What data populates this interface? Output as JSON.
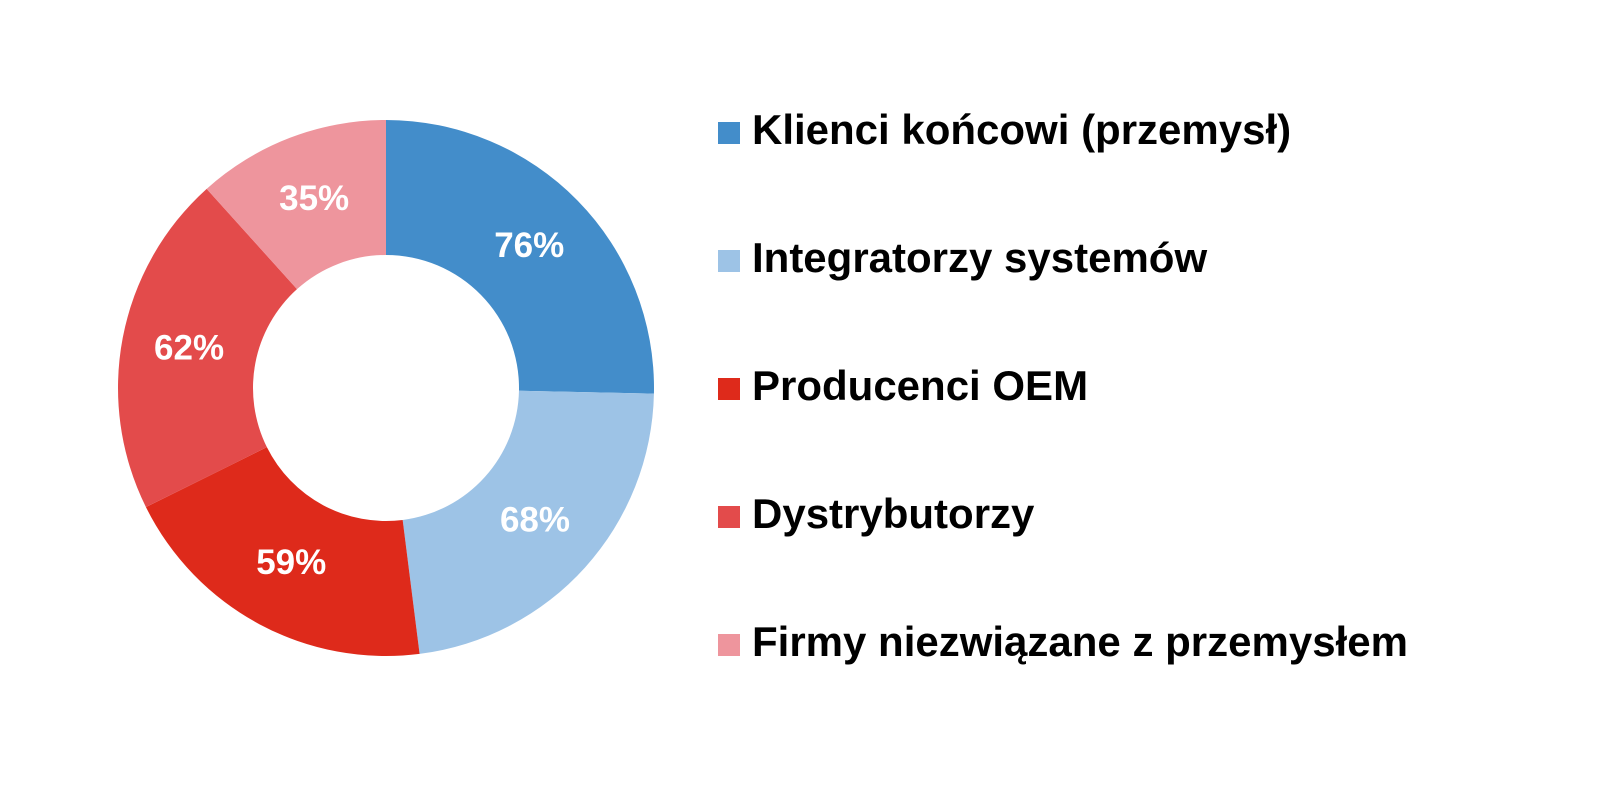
{
  "chart_data": {
    "type": "donut",
    "categories": [
      "Klienci końcowi (przemysł)",
      "Integratorzy systemów",
      "Producenci OEM",
      "Dystrybutorzy",
      "Firmy niezwiązane z przemysłem"
    ],
    "values": [
      76,
      68,
      59,
      62,
      35
    ],
    "value_labels": [
      "76%",
      "68%",
      "59%",
      "62%",
      "35%"
    ],
    "colors": [
      "#438dca",
      "#9dc3e6",
      "#de2a1b",
      "#e34b4b",
      "#ee959d"
    ]
  }
}
